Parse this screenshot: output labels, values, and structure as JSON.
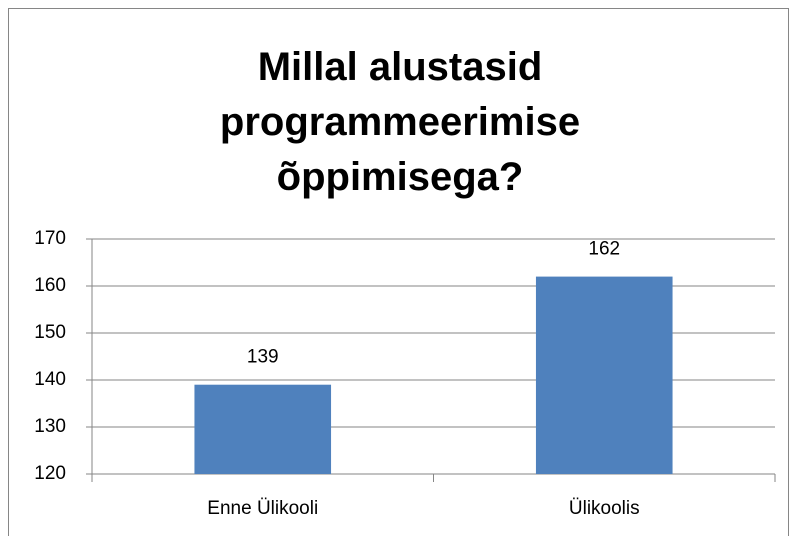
{
  "chart_data": {
    "type": "bar",
    "title": "Millal alustasid programmeerimise õppimisega?",
    "categories": [
      "Enne Ülikooli",
      "Ülikoolis"
    ],
    "values": [
      139,
      162
    ],
    "color": "#4f81bd",
    "ylim": [
      120,
      170
    ],
    "yticks": [
      120,
      130,
      140,
      150,
      160,
      170
    ],
    "grid": true
  }
}
